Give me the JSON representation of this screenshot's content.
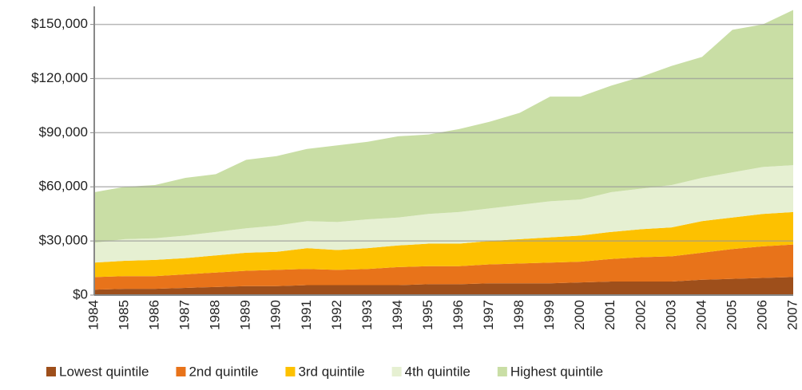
{
  "chart_data": {
    "type": "stacked_area",
    "categories": [
      "1984",
      "1985",
      "1986",
      "1987",
      "1988",
      "1989",
      "1990",
      "1991",
      "1992",
      "1993",
      "1994",
      "1995",
      "1996",
      "1997",
      "1998",
      "1999",
      "2000",
      "2001",
      "2002",
      "2003",
      "2004",
      "2005",
      "2006",
      "2007"
    ],
    "series": [
      {
        "name": "Lowest quintile",
        "color": "#9e4f1b",
        "values": [
          3000,
          3500,
          3500,
          4000,
          4500,
          5000,
          5000,
          5500,
          5500,
          5500,
          5500,
          6000,
          6000,
          6500,
          6500,
          6500,
          7000,
          7500,
          7500,
          7500,
          8500,
          9000,
          9500,
          10000
        ]
      },
      {
        "name": "2nd quintile",
        "color": "#e8731a",
        "values": [
          7000,
          7000,
          7000,
          7500,
          8000,
          8500,
          9000,
          9000,
          8500,
          9000,
          10000,
          10000,
          10000,
          10500,
          11000,
          11500,
          11500,
          12500,
          13500,
          14000,
          15000,
          16500,
          17500,
          18000
        ]
      },
      {
        "name": "3rd quintile",
        "color": "#fdc100",
        "values": [
          8000,
          8500,
          9000,
          9000,
          9500,
          10000,
          10000,
          11500,
          11000,
          11500,
          12000,
          12500,
          12500,
          13000,
          13500,
          14000,
          14500,
          15000,
          15500,
          16000,
          17500,
          17500,
          18000,
          18000
        ]
      },
      {
        "name": "4th quintile",
        "color": "#e6f0d2",
        "values": [
          11000,
          12000,
          12000,
          12500,
          13000,
          13500,
          14500,
          15000,
          15500,
          16000,
          15500,
          16500,
          17500,
          18000,
          19000,
          20000,
          20000,
          22000,
          22500,
          23500,
          24000,
          25000,
          26000,
          26000
        ]
      },
      {
        "name": "Highest quintile",
        "color": "#c9dea5",
        "values": [
          28000,
          29000,
          29500,
          32000,
          32000,
          38000,
          38500,
          40000,
          42500,
          43000,
          45000,
          44000,
          46000,
          48000,
          51000,
          58000,
          57000,
          59000,
          62000,
          66000,
          67000,
          79000,
          79000,
          86000
        ]
      }
    ],
    "ylim": [
      0,
      160000
    ],
    "yticks": [
      {
        "value": 0,
        "label": "$0"
      },
      {
        "value": 30000,
        "label": "$30,000"
      },
      {
        "value": 60000,
        "label": "$60,000"
      },
      {
        "value": 90000,
        "label": "$90,000"
      },
      {
        "value": 120000,
        "label": "$120,000"
      },
      {
        "value": 150000,
        "label": "$150,000"
      }
    ],
    "grid": true,
    "legend": "bottom"
  }
}
